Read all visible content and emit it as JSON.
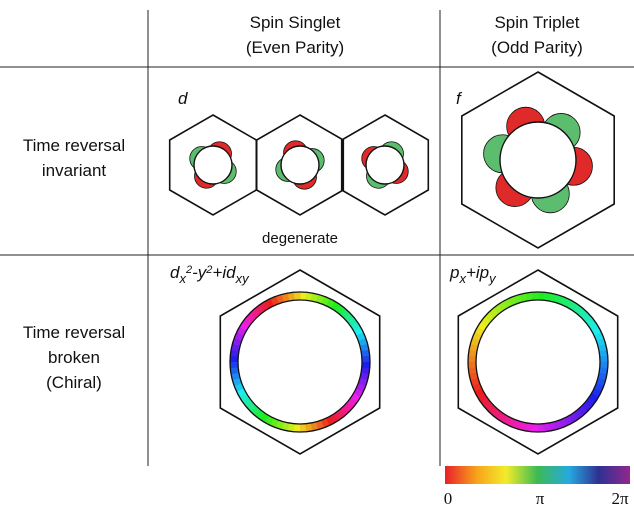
{
  "header": {
    "columns": [
      [
        "Spin Singlet",
        "(Even Parity)"
      ],
      [
        "Spin Triplet",
        "(Odd Parity)"
      ]
    ]
  },
  "rows": [
    [
      "Time reversal",
      "invariant"
    ],
    [
      "Time reversal",
      "broken",
      "(Chiral)"
    ]
  ],
  "cells": {
    "singlet_invariant": {
      "label": "d",
      "note": "degenerate"
    },
    "triplet_invariant": {
      "label": "f"
    },
    "singlet_chiral": {
      "label": [
        "d",
        "x",
        "2",
        "-y",
        "2",
        "+id",
        "xy"
      ]
    },
    "triplet_chiral": {
      "label": [
        "p",
        "x",
        "+ip",
        "y"
      ]
    }
  },
  "colorbar": {
    "labels": [
      "0",
      "π",
      "2π"
    ]
  }
}
